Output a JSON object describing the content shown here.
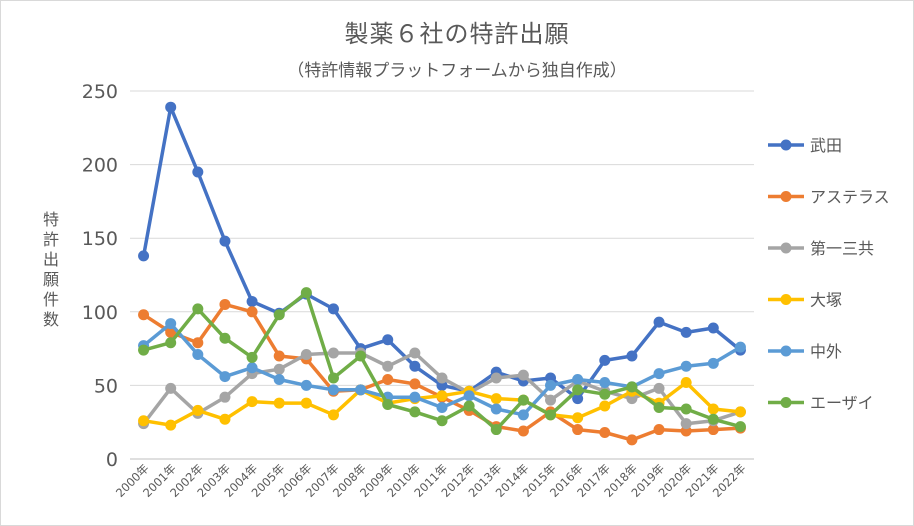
{
  "chart_data": {
    "type": "line",
    "title": "製薬６社の特許出願",
    "subtitle": "（特許情報プラットフォームから独自作成）",
    "ylabel": "特許出願件数",
    "xlabel": "",
    "ylim": [
      0,
      250
    ],
    "yticks": [
      0,
      50,
      100,
      150,
      200,
      250
    ],
    "grid": true,
    "legend_position": "right",
    "categories": [
      "2000年",
      "2001年",
      "2002年",
      "2003年",
      "2004年",
      "2005年",
      "2006年",
      "2007年",
      "2008年",
      "2009年",
      "2010年",
      "2011年",
      "2012年",
      "2013年",
      "2014年",
      "2015年",
      "2016年",
      "2017年",
      "2018年",
      "2019年",
      "2020年",
      "2021年",
      "2022年"
    ],
    "series": [
      {
        "name": "武田",
        "color": "#4472C4",
        "values": [
          138,
          239,
          195,
          148,
          107,
          99,
          112,
          102,
          75,
          81,
          63,
          50,
          46,
          59,
          53,
          55,
          41,
          67,
          70,
          93,
          86,
          89,
          74
        ]
      },
      {
        "name": "アステラス",
        "color": "#ED7D31",
        "values": [
          98,
          86,
          79,
          105,
          100,
          70,
          68,
          46,
          47,
          54,
          51,
          42,
          33,
          22,
          19,
          32,
          20,
          18,
          13,
          20,
          19,
          20,
          21
        ]
      },
      {
        "name": "第一三共",
        "color": "#A5A5A5",
        "values": [
          24,
          48,
          31,
          42,
          58,
          61,
          71,
          72,
          72,
          63,
          72,
          55,
          45,
          55,
          57,
          40,
          53,
          46,
          41,
          48,
          24,
          26,
          32
        ]
      },
      {
        "name": "大塚",
        "color": "#FFC000",
        "values": [
          26,
          23,
          33,
          27,
          39,
          38,
          38,
          30,
          47,
          38,
          41,
          43,
          46,
          41,
          40,
          30,
          28,
          36,
          46,
          38,
          52,
          34,
          32
        ]
      },
      {
        "name": "中外",
        "color": "#5B9BD5",
        "values": [
          77,
          92,
          71,
          56,
          62,
          54,
          50,
          47,
          47,
          42,
          42,
          35,
          43,
          34,
          30,
          50,
          54,
          52,
          49,
          58,
          63,
          65,
          76
        ]
      },
      {
        "name": "エーザイ",
        "color": "#70AD47",
        "values": [
          74,
          79,
          102,
          82,
          69,
          98,
          113,
          55,
          70,
          37,
          32,
          26,
          36,
          20,
          40,
          30,
          47,
          44,
          49,
          35,
          34,
          27,
          22
        ]
      }
    ]
  }
}
